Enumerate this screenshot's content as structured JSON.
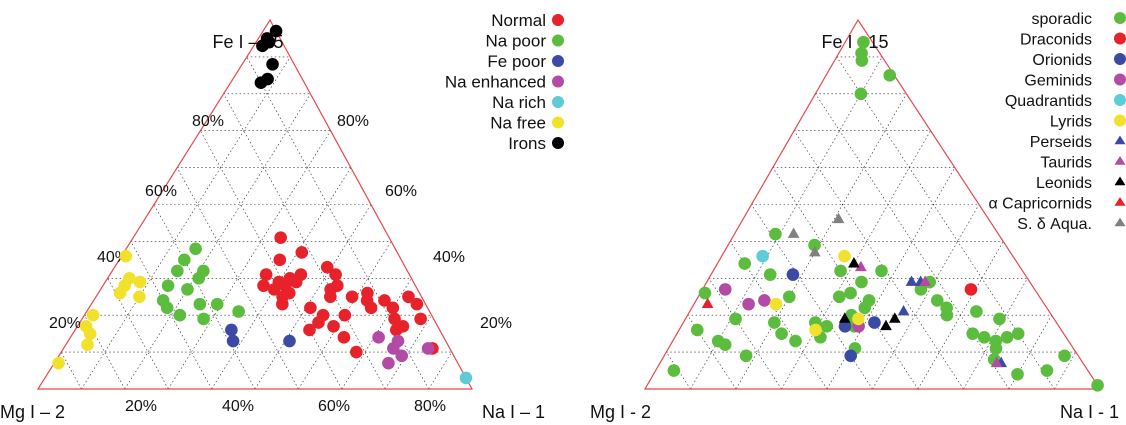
{
  "chart_data": [
    {
      "type": "scatter",
      "subtype": "ternary",
      "vertices": {
        "top": "Fe I – 15",
        "left": "Mg I – 2",
        "right": "Na I – 1"
      },
      "ticks": [
        "20%",
        "40%",
        "60%",
        "80%"
      ],
      "grid": true,
      "legend_position": "top-right",
      "series": [
        {
          "name": "Normal",
          "color": "#e8222a",
          "marker": "circle",
          "points": [
            [
              0.28,
              0.3,
              0.42
            ],
            [
              0.27,
              0.33,
              0.4
            ],
            [
              0.25,
              0.32,
              0.43
            ],
            [
              0.29,
              0.27,
              0.44
            ],
            [
              0.31,
              0.25,
              0.44
            ],
            [
              0.3,
              0.28,
              0.42
            ],
            [
              0.26,
              0.3,
              0.44
            ],
            [
              0.31,
              0.33,
              0.36
            ],
            [
              0.28,
              0.35,
              0.37
            ],
            [
              0.23,
              0.33,
              0.44
            ],
            [
              0.29,
              0.31,
              0.4
            ],
            [
              0.41,
              0.25,
              0.34
            ],
            [
              0.37,
              0.22,
              0.41
            ],
            [
              0.33,
              0.18,
              0.49
            ],
            [
              0.31,
              0.17,
              0.52
            ],
            [
              0.28,
              0.18,
              0.54
            ],
            [
              0.27,
              0.2,
              0.53
            ],
            [
              0.25,
              0.21,
              0.54
            ],
            [
              0.25,
              0.16,
              0.59
            ],
            [
              0.26,
              0.12,
              0.62
            ],
            [
              0.24,
              0.13,
              0.63
            ],
            [
              0.24,
              0.09,
              0.67
            ],
            [
              0.22,
              0.08,
              0.7
            ],
            [
              0.19,
              0.09,
              0.72
            ],
            [
              0.17,
              0.08,
              0.75
            ],
            [
              0.16,
              0.1,
              0.74
            ],
            [
              0.2,
              0.25,
              0.55
            ],
            [
              0.18,
              0.27,
              0.55
            ],
            [
              0.17,
              0.24,
              0.59
            ],
            [
              0.16,
              0.3,
              0.54
            ],
            [
              0.14,
              0.23,
              0.63
            ],
            [
              0.1,
              0.22,
              0.68
            ],
            [
              0.11,
              0.04,
              0.85
            ],
            [
              0.19,
              0.03,
              0.78
            ],
            [
              0.25,
              0.03,
              0.72
            ],
            [
              0.22,
              0.13,
              0.65
            ],
            [
              0.23,
              0.02,
              0.75
            ],
            [
              0.35,
              0.28,
              0.37
            ],
            [
              0.2,
              0.2,
              0.6
            ],
            [
              0.22,
              0.27,
              0.51
            ]
          ]
        },
        {
          "name": "Na poor",
          "color": "#5bbc3e",
          "marker": "circle",
          "points": [
            [
              0.35,
              0.5,
              0.15
            ],
            [
              0.38,
              0.46,
              0.16
            ],
            [
              0.32,
              0.53,
              0.15
            ],
            [
              0.32,
              0.47,
              0.21
            ],
            [
              0.3,
              0.49,
              0.21
            ],
            [
              0.27,
              0.53,
              0.2
            ],
            [
              0.28,
              0.57,
              0.15
            ],
            [
              0.24,
              0.6,
              0.16
            ],
            [
              0.22,
              0.6,
              0.18
            ],
            [
              0.2,
              0.58,
              0.22
            ],
            [
              0.19,
              0.53,
              0.28
            ],
            [
              0.23,
              0.48,
              0.29
            ],
            [
              0.23,
              0.52,
              0.25
            ],
            [
              0.21,
              0.44,
              0.35
            ]
          ]
        },
        {
          "name": "Fe poor",
          "color": "#3b4aa5",
          "marker": "circle",
          "points": [
            [
              0.16,
              0.48,
              0.36
            ],
            [
              0.13,
              0.36,
              0.51
            ],
            [
              0.13,
              0.49,
              0.38
            ]
          ]
        },
        {
          "name": "Na enhanced",
          "color": "#b24aa6",
          "marker": "circle",
          "points": [
            [
              0.14,
              0.15,
              0.71
            ],
            [
              0.13,
              0.11,
              0.76
            ],
            [
              0.11,
              0.13,
              0.76
            ],
            [
              0.11,
              0.05,
              0.84
            ],
            [
              0.09,
              0.12,
              0.79
            ],
            [
              0.07,
              0.16,
              0.77
            ]
          ]
        },
        {
          "name": "Na rich",
          "color": "#5ecbd9",
          "marker": "circle",
          "points": [
            [
              0.03,
              0.0,
              0.97
            ]
          ]
        },
        {
          "name": "Na free",
          "color": "#f2e12a",
          "marker": "circle",
          "points": [
            [
              0.36,
              0.63,
              0.01
            ],
            [
              0.3,
              0.65,
              0.05
            ],
            [
              0.28,
              0.67,
              0.05
            ],
            [
              0.29,
              0.63,
              0.08
            ],
            [
              0.26,
              0.69,
              0.05
            ],
            [
              0.25,
              0.65,
              0.1
            ],
            [
              0.2,
              0.78,
              0.02
            ],
            [
              0.17,
              0.81,
              0.02
            ],
            [
              0.15,
              0.81,
              0.04
            ],
            [
              0.12,
              0.83,
              0.05
            ],
            [
              0.07,
              0.92,
              0.01
            ]
          ]
        },
        {
          "name": "Irons",
          "color": "#000000",
          "marker": "circle",
          "points": [
            [
              0.97,
              0.0,
              0.03
            ],
            [
              0.95,
              0.03,
              0.02
            ],
            [
              0.94,
              0.03,
              0.03
            ],
            [
              0.93,
              0.05,
              0.02
            ],
            [
              0.88,
              0.05,
              0.07
            ],
            [
              0.84,
              0.08,
              0.08
            ],
            [
              0.83,
              0.1,
              0.07
            ]
          ]
        }
      ]
    },
    {
      "type": "scatter",
      "subtype": "ternary",
      "vertices": {
        "top": "Fe I - 15",
        "left": "Mg I - 2",
        "right": "Na I - 1"
      },
      "grid": true,
      "legend_position": "top-right",
      "series": [
        {
          "name": "sporadic",
          "color": "#5bbc3e",
          "marker": "circle",
          "points": [
            [
              0.94,
              0.02,
              0.04
            ],
            [
              0.91,
              0.04,
              0.05
            ],
            [
              0.89,
              0.05,
              0.06
            ],
            [
              0.85,
              0.01,
              0.14
            ],
            [
              0.8,
              0.1,
              0.1
            ],
            [
              0.42,
              0.49,
              0.09
            ],
            [
              0.39,
              0.42,
              0.19
            ],
            [
              0.34,
              0.6,
              0.06
            ],
            [
              0.31,
              0.56,
              0.13
            ],
            [
              0.26,
              0.73,
              0.01
            ],
            [
              0.19,
              0.7,
              0.11
            ],
            [
              0.18,
              0.62,
              0.2
            ],
            [
              0.18,
              0.53,
              0.29
            ],
            [
              0.17,
              0.45,
              0.38
            ],
            [
              0.16,
              0.8,
              0.04
            ],
            [
              0.13,
              0.77,
              0.1
            ],
            [
              0.12,
              0.76,
              0.12
            ],
            [
              0.09,
              0.73,
              0.18
            ],
            [
              0.05,
              0.91,
              0.04
            ],
            [
              0.14,
              0.54,
              0.32
            ],
            [
              0.25,
              0.44,
              0.31
            ],
            [
              0.32,
              0.4,
              0.28
            ],
            [
              0.29,
              0.37,
              0.34
            ],
            [
              0.26,
              0.41,
              0.33
            ],
            [
              0.24,
              0.38,
              0.38
            ],
            [
              0.22,
              0.4,
              0.38
            ],
            [
              0.2,
              0.44,
              0.36
            ],
            [
              0.17,
              0.51,
              0.32
            ],
            [
              0.15,
              0.62,
              0.23
            ],
            [
              0.13,
              0.6,
              0.27
            ],
            [
              0.11,
              0.48,
              0.41
            ],
            [
              0.25,
              0.55,
              0.2
            ],
            [
              0.32,
              0.31,
              0.37
            ],
            [
              0.29,
              0.22,
              0.49
            ],
            [
              0.27,
              0.25,
              0.48
            ],
            [
              0.24,
              0.23,
              0.53
            ],
            [
              0.22,
              0.22,
              0.56
            ],
            [
              0.21,
              0.16,
              0.63
            ],
            [
              0.2,
              0.23,
              0.57
            ],
            [
              0.19,
              0.12,
              0.69
            ],
            [
              0.15,
              0.2,
              0.65
            ],
            [
              0.15,
              0.1,
              0.75
            ],
            [
              0.14,
              0.18,
              0.68
            ],
            [
              0.14,
              0.13,
              0.73
            ],
            [
              0.13,
              0.16,
              0.71
            ],
            [
              0.11,
              0.17,
              0.72
            ],
            [
              0.09,
              0.03,
              0.88
            ],
            [
              0.08,
              0.19,
              0.73
            ],
            [
              0.05,
              0.09,
              0.86
            ],
            [
              0.04,
              0.16,
              0.8
            ],
            [
              0.01,
              0.0,
              0.99
            ]
          ]
        },
        {
          "name": "Draconids",
          "color": "#e8222a",
          "marker": "circle",
          "points": [
            [
              0.27,
              0.14,
              0.59
            ]
          ]
        },
        {
          "name": "Orionids",
          "color": "#3b4aa5",
          "marker": "circle",
          "points": [
            [
              0.31,
              0.51,
              0.18
            ],
            [
              0.17,
              0.47,
              0.36
            ],
            [
              0.09,
              0.5,
              0.41
            ],
            [
              0.18,
              0.4,
              0.42
            ]
          ]
        },
        {
          "name": "Geminids",
          "color": "#b24aa6",
          "marker": "circle",
          "points": [
            [
              0.27,
              0.68,
              0.05
            ],
            [
              0.23,
              0.65,
              0.12
            ],
            [
              0.24,
              0.61,
              0.15
            ],
            [
              0.17,
              0.44,
              0.39
            ]
          ]
        },
        {
          "name": "Quadrantids",
          "color": "#5ecbd9",
          "marker": "circle",
          "points": [
            [
              0.36,
              0.55,
              0.09
            ]
          ]
        },
        {
          "name": "Lyrids",
          "color": "#f2e12a",
          "marker": "circle",
          "points": [
            [
              0.23,
              0.59,
              0.18
            ],
            [
              0.36,
              0.37,
              0.27
            ],
            [
              0.16,
              0.54,
              0.3
            ],
            [
              0.19,
              0.43,
              0.38
            ]
          ]
        },
        {
          "name": "Perseids",
          "color": "#3b4aa5",
          "marker": "triangle",
          "points": [
            [
              0.29,
              0.26,
              0.45
            ],
            [
              0.29,
              0.24,
              0.47
            ],
            [
              0.21,
              0.32,
              0.47
            ],
            [
              0.07,
              0.18,
              0.75
            ]
          ]
        },
        {
          "name": "Taurids",
          "color": "#b24aa6",
          "marker": "triangle",
          "points": [
            [
              0.33,
              0.35,
              0.32
            ],
            [
              0.29,
              0.23,
              0.48
            ],
            [
              0.07,
              0.19,
              0.74
            ]
          ]
        },
        {
          "name": "Leonids",
          "color": "#000000",
          "marker": "triangle",
          "points": [
            [
              0.34,
              0.36,
              0.3
            ],
            [
              0.19,
              0.46,
              0.35
            ],
            [
              0.17,
              0.38,
              0.45
            ],
            [
              0.19,
              0.35,
              0.46
            ]
          ]
        },
        {
          "name": "α Capricornids",
          "color": "#e8222a",
          "marker": "triangle",
          "points": [
            [
              0.23,
              0.74,
              0.03
            ]
          ]
        },
        {
          "name": "S. δ Aqua.",
          "color": "#808080",
          "marker": "triangle",
          "points": [
            [
              0.46,
              0.33,
              0.21
            ],
            [
              0.42,
              0.45,
              0.13
            ],
            [
              0.37,
              0.43,
              0.2
            ]
          ]
        }
      ]
    }
  ]
}
